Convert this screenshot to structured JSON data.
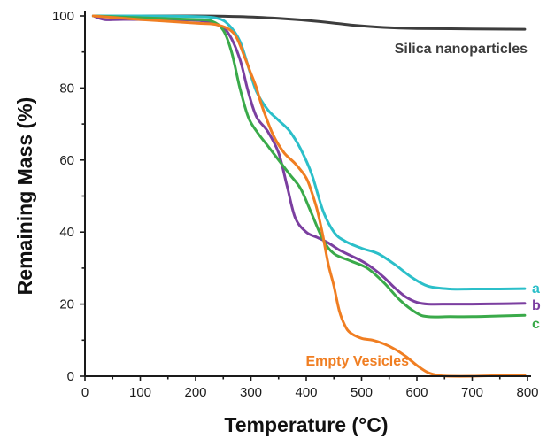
{
  "chart_data": {
    "type": "line",
    "xlabel": "Temperature (°C)",
    "ylabel": "Remaining Mass (%)",
    "xlim": [
      0,
      800
    ],
    "ylim": [
      0,
      100
    ],
    "xticks": [
      0,
      100,
      200,
      300,
      400,
      500,
      600,
      700,
      800
    ],
    "yticks": [
      0,
      20,
      40,
      60,
      80,
      100
    ],
    "grid": false,
    "legend": "none (labels placed next to curves)",
    "series": [
      {
        "name": "Silica nanoparticles",
        "color": "#3d3d3d",
        "label_position": "upper-right",
        "x": [
          15,
          100,
          200,
          280,
          350,
          420,
          480,
          540,
          600,
          700,
          795
        ],
        "y": [
          100,
          100,
          100,
          99.8,
          99.3,
          98.5,
          97.5,
          96.8,
          96.5,
          96.4,
          96.3
        ]
      },
      {
        "name": "a",
        "color": "#2bbfc9",
        "label_position": "end",
        "x": [
          15,
          100,
          200,
          240,
          260,
          280,
          295,
          310,
          330,
          350,
          370,
          390,
          410,
          430,
          450,
          470,
          500,
          530,
          560,
          590,
          620,
          660,
          700,
          750,
          795
        ],
        "y": [
          100,
          100,
          99.8,
          99.3,
          97.5,
          93,
          86,
          79,
          74,
          71,
          68,
          63,
          56,
          46,
          40,
          37.5,
          35.5,
          34,
          31,
          27.5,
          25,
          24.2,
          24.2,
          24.2,
          24.3
        ]
      },
      {
        "name": "b",
        "color": "#7b3fa0",
        "label_position": "end",
        "x": [
          15,
          35,
          60,
          100,
          200,
          240,
          260,
          280,
          295,
          310,
          330,
          350,
          365,
          380,
          400,
          420,
          440,
          460,
          480,
          500,
          520,
          540,
          560,
          580,
          600,
          620,
          660,
          700,
          750,
          795
        ],
        "y": [
          100,
          99,
          99,
          99,
          98.8,
          97.5,
          95,
          88,
          79,
          72,
          68,
          62,
          53,
          44,
          40,
          38.5,
          37,
          35,
          33.5,
          32,
          30,
          27.5,
          24.5,
          22,
          20.5,
          20,
          20,
          20,
          20.1,
          20.2
        ]
      },
      {
        "name": "c",
        "color": "#3aaa4a",
        "label_position": "end",
        "x": [
          15,
          100,
          200,
          230,
          250,
          265,
          280,
          295,
          310,
          330,
          350,
          370,
          390,
          410,
          430,
          450,
          480,
          510,
          540,
          570,
          600,
          620,
          660,
          700,
          750,
          795
        ],
        "y": [
          100,
          99.5,
          99,
          98.5,
          96,
          90,
          80,
          72,
          68,
          64,
          60,
          56,
          52,
          45,
          38,
          34,
          32,
          30,
          26,
          21,
          17.5,
          16.5,
          16.5,
          16.5,
          16.7,
          16.9
        ]
      },
      {
        "name": "Empty Vesicles",
        "color": "#f07e22",
        "label_position": "lower-right",
        "x": [
          15,
          100,
          200,
          240,
          270,
          290,
          300,
          310,
          320,
          340,
          360,
          380,
          400,
          410,
          420,
          430,
          440,
          450,
          460,
          470,
          480,
          500,
          520,
          540,
          560,
          580,
          600,
          620,
          640,
          660,
          700,
          750,
          795
        ],
        "y": [
          100,
          99,
          98,
          97.5,
          95,
          88,
          84,
          80,
          75,
          67,
          62,
          59,
          55,
          51,
          46,
          39,
          31,
          25,
          18,
          14,
          12,
          10.5,
          10,
          9,
          7.5,
          5.5,
          3,
          1,
          0.2,
          0,
          0,
          0.2,
          0.3
        ]
      }
    ]
  }
}
